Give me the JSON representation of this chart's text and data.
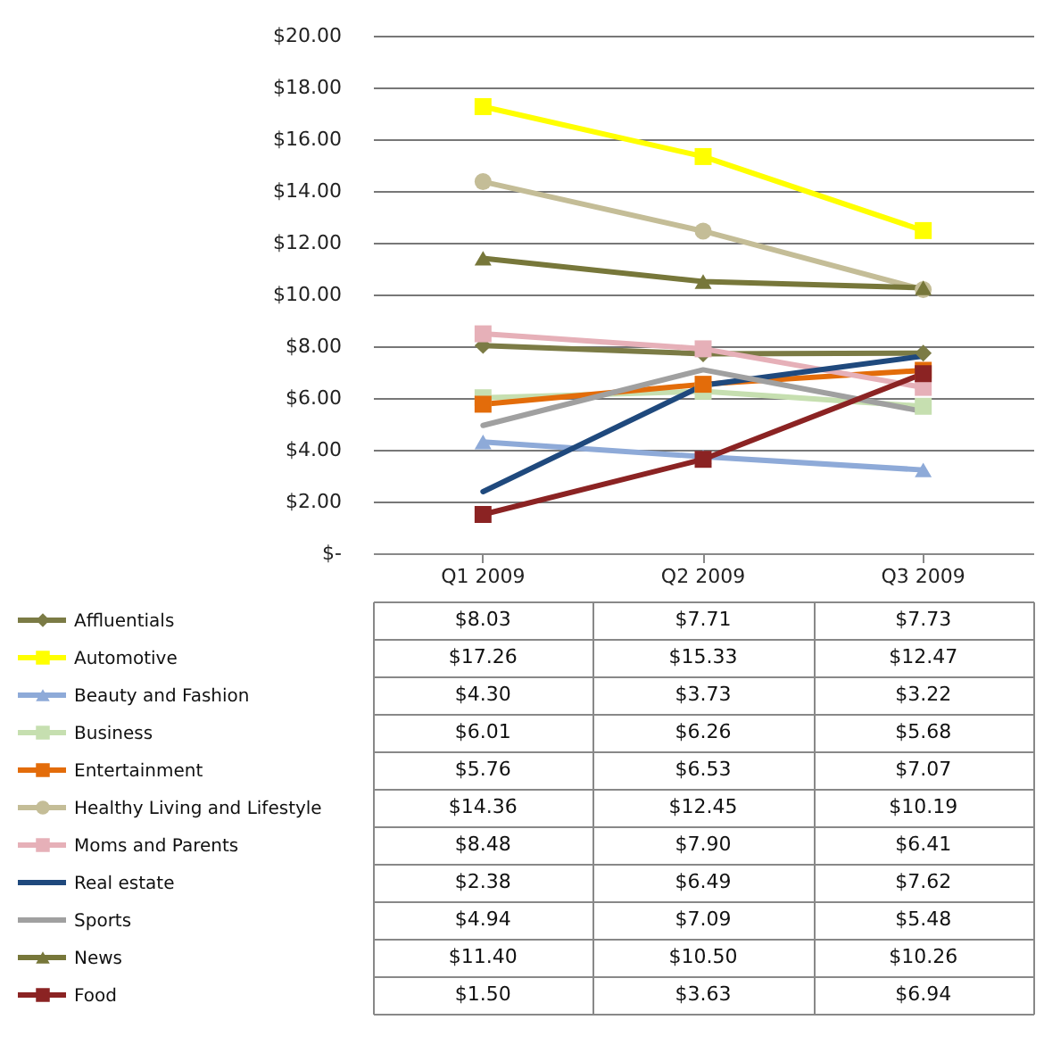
{
  "chart_data": {
    "type": "line",
    "categories": [
      "Q1 2009",
      "Q2 2009",
      "Q3 2009"
    ],
    "ylim": [
      0,
      20
    ],
    "yticks": [
      {
        "value": 0,
        "label": "$-"
      },
      {
        "value": 2,
        "label": "$2.00"
      },
      {
        "value": 4,
        "label": "$4.00"
      },
      {
        "value": 6,
        "label": "$6.00"
      },
      {
        "value": 8,
        "label": "$8.00"
      },
      {
        "value": 10,
        "label": "$10.00"
      },
      {
        "value": 12,
        "label": "$12.00"
      },
      {
        "value": 14,
        "label": "$14.00"
      },
      {
        "value": 16,
        "label": "$16.00"
      },
      {
        "value": 18,
        "label": "$18.00"
      },
      {
        "value": 20,
        "label": "$20.00"
      }
    ],
    "grid": "y",
    "legend": "bottom",
    "series": [
      {
        "name": "Affluentials",
        "color": "#7b7b45",
        "marker": "diamond",
        "values": [
          8.03,
          7.71,
          7.73
        ],
        "value_labels": [
          "$8.03",
          "$7.71",
          "$7.73"
        ]
      },
      {
        "name": "Automotive",
        "color": "#ffff00",
        "marker": "square",
        "values": [
          17.26,
          15.33,
          12.47
        ],
        "value_labels": [
          "$17.26",
          "$15.33",
          "$12.47"
        ]
      },
      {
        "name": "Beauty and Fashion",
        "color": "#8eaad8",
        "marker": "triangle",
        "values": [
          4.3,
          3.73,
          3.22
        ],
        "value_labels": [
          "$4.30",
          "$3.73",
          "$3.22"
        ]
      },
      {
        "name": "Business",
        "color": "#c6dfb0",
        "marker": "square",
        "values": [
          6.01,
          6.26,
          5.68
        ],
        "value_labels": [
          "$6.01",
          "$6.26",
          "$5.68"
        ]
      },
      {
        "name": "Entertainment",
        "color": "#e36c0a",
        "marker": "square",
        "values": [
          5.76,
          6.53,
          7.07
        ],
        "value_labels": [
          "$5.76",
          "$6.53",
          "$7.07"
        ]
      },
      {
        "name": "Healthy Living and Lifestyle",
        "color": "#c4bd97",
        "marker": "circle",
        "values": [
          14.36,
          12.45,
          10.19
        ],
        "value_labels": [
          "$14.36",
          "$12.45",
          "$10.19"
        ]
      },
      {
        "name": "Moms and Parents",
        "color": "#e6b0b8",
        "marker": "square",
        "values": [
          8.48,
          7.9,
          6.41
        ],
        "value_labels": [
          "$8.48",
          "$7.90",
          "$6.41"
        ]
      },
      {
        "name": "Real estate",
        "color": "#1f497d",
        "marker": "none",
        "values": [
          2.38,
          6.49,
          7.62
        ],
        "value_labels": [
          "$2.38",
          "$6.49",
          "$7.62"
        ]
      },
      {
        "name": "Sports",
        "color": "#a0a0a0",
        "marker": "none",
        "values": [
          4.94,
          7.09,
          5.48
        ],
        "value_labels": [
          "$4.94",
          "$7.09",
          "$5.48"
        ]
      },
      {
        "name": "News",
        "color": "#77773a",
        "marker": "triangle",
        "values": [
          11.4,
          10.5,
          10.26
        ],
        "value_labels": [
          "$11.40",
          "$10.50",
          "$10.26"
        ]
      },
      {
        "name": "Food",
        "color": "#8b2323",
        "marker": "square",
        "values": [
          1.5,
          3.63,
          6.94
        ],
        "value_labels": [
          "$1.50",
          "$3.63",
          "$6.94"
        ]
      }
    ]
  }
}
